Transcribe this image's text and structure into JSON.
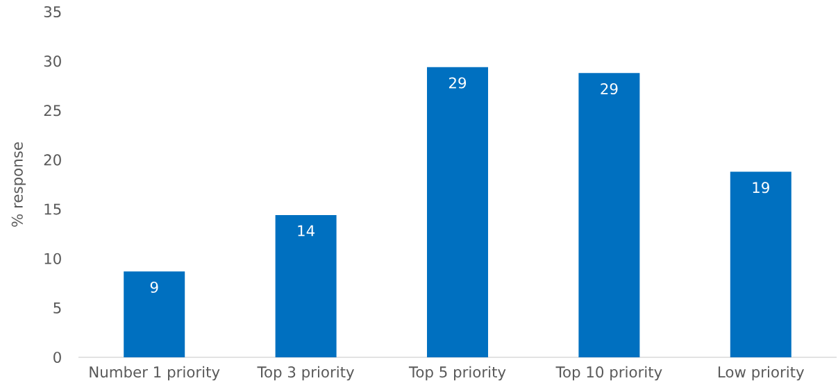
{
  "chart_data": {
    "type": "bar",
    "ylabel": "% response",
    "categories": [
      "Number 1 priority",
      "Top 3 priority",
      "Top 5 priority",
      "Top 10 priority",
      "Low priority"
    ],
    "values": [
      8.7,
      14.4,
      29.4,
      28.8,
      18.8
    ],
    "value_labels": [
      "9",
      "14",
      "29",
      "29",
      "19"
    ],
    "color": "#0070c0",
    "ylim": [
      0,
      35
    ],
    "yticks": [
      0,
      5,
      10,
      15,
      20,
      25,
      30,
      35
    ]
  }
}
